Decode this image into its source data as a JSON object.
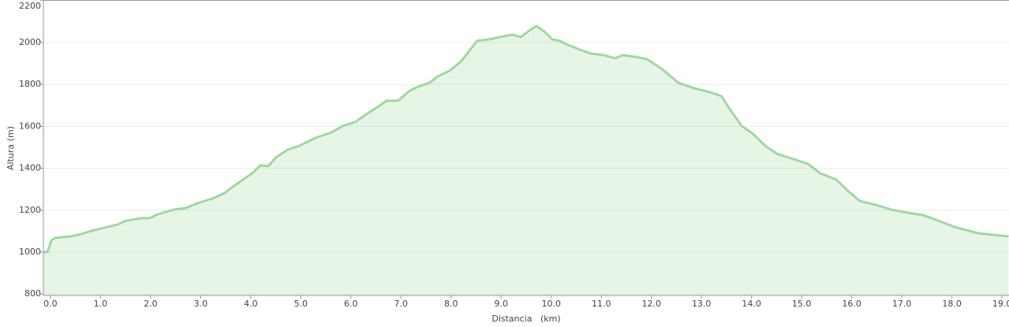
{
  "chart_data": {
    "type": "area",
    "x_label": "Distancia   (km)",
    "y_label": "Altura (m)",
    "xlim": [
      -0.14,
      19.14
    ],
    "ylim": [
      793,
      2203
    ],
    "xticks": [
      {
        "value": 0,
        "label": "0.0"
      },
      {
        "value": 1,
        "label": "1.0"
      },
      {
        "value": 2,
        "label": "2.0"
      },
      {
        "value": 3,
        "label": "3.0"
      },
      {
        "value": 4,
        "label": "4.0"
      },
      {
        "value": 5,
        "label": "5.0"
      },
      {
        "value": 6,
        "label": "6.0"
      },
      {
        "value": 7,
        "label": "7.0"
      },
      {
        "value": 8,
        "label": "8.0"
      },
      {
        "value": 9,
        "label": "9.0"
      },
      {
        "value": 10,
        "label": "10.0"
      },
      {
        "value": 11,
        "label": "11.0"
      },
      {
        "value": 12,
        "label": "12.0"
      },
      {
        "value": 13,
        "label": "13.0"
      },
      {
        "value": 14,
        "label": "14.0"
      },
      {
        "value": 15,
        "label": "15.0"
      },
      {
        "value": 16,
        "label": "16.0"
      },
      {
        "value": 17,
        "label": "17.0"
      },
      {
        "value": 18,
        "label": "18.0"
      },
      {
        "value": 19,
        "label": "19.0"
      }
    ],
    "yticks": [
      800,
      1000,
      1200,
      1400,
      1600,
      1800,
      2000,
      2200
    ],
    "grid": true,
    "color": "#9fd89f",
    "x": [
      -0.14,
      -0.06,
      0.02,
      0.1,
      0.4,
      0.57,
      0.72,
      0.88,
      1.35,
      1.5,
      1.83,
      1.98,
      2.14,
      2.46,
      2.7,
      2.93,
      3.24,
      3.48,
      3.64,
      4.03,
      4.19,
      4.35,
      4.5,
      4.74,
      4.98,
      5.29,
      5.61,
      5.84,
      6.08,
      6.31,
      6.55,
      6.71,
      6.94,
      7.18,
      7.34,
      7.57,
      7.73,
      7.97,
      8.2,
      8.52,
      8.76,
      8.91,
      9.23,
      9.39,
      9.54,
      9.7,
      9.86,
      10.02,
      10.17,
      10.33,
      10.57,
      10.8,
      11.04,
      11.28,
      11.43,
      11.67,
      11.91,
      12.22,
      12.54,
      12.85,
      13.17,
      13.4,
      13.56,
      13.8,
      14.03,
      14.27,
      14.5,
      14.74,
      15.13,
      15.37,
      15.69,
      15.92,
      16.16,
      16.47,
      16.79,
      17.1,
      17.42,
      17.73,
      18.05,
      18.52,
      19.13
    ],
    "values": [
      1000,
      1000,
      1056,
      1068,
      1075,
      1083,
      1094,
      1105,
      1132,
      1150,
      1162,
      1162,
      1180,
      1203,
      1210,
      1233,
      1256,
      1282,
      1312,
      1376,
      1414,
      1410,
      1451,
      1489,
      1508,
      1545,
      1571,
      1602,
      1620,
      1658,
      1695,
      1722,
      1722,
      1771,
      1789,
      1808,
      1838,
      1865,
      1910,
      2008,
      2015,
      2023,
      2038,
      2026,
      2053,
      2079,
      2053,
      2015,
      2008,
      1989,
      1966,
      1947,
      1940,
      1925,
      1940,
      1932,
      1921,
      1872,
      1808,
      1782,
      1763,
      1744,
      1684,
      1602,
      1564,
      1508,
      1470,
      1451,
      1421,
      1376,
      1346,
      1293,
      1244,
      1226,
      1203,
      1188,
      1177,
      1150,
      1120,
      1090,
      1075
    ]
  }
}
